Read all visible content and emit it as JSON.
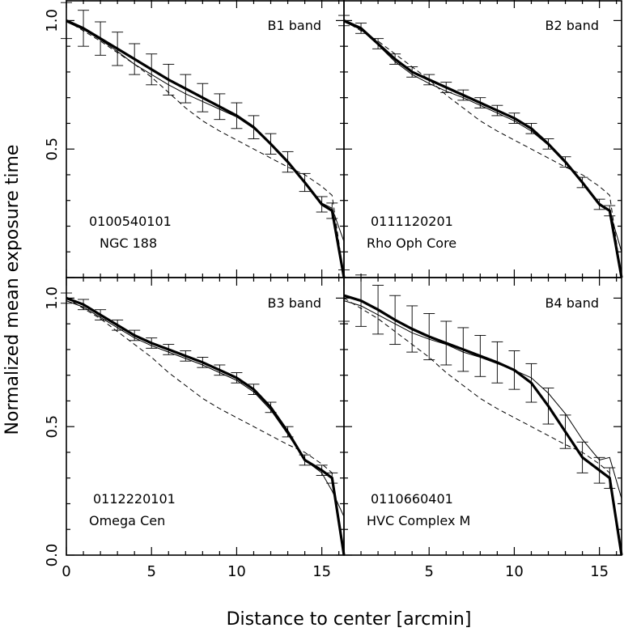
{
  "figure": {
    "ylabel": "Normalized mean exposure time",
    "xlabel": "Distance to center  [arcmin]"
  },
  "chart_data": [
    {
      "type": "line",
      "band": "B1 band",
      "obsid": "0100540101",
      "target": "NGC 188",
      "xlim": [
        0,
        16.3
      ],
      "ylim": [
        0,
        1.08
      ],
      "xticks": [],
      "yticks": [
        "1.0",
        "0.5"
      ],
      "x": [
        0,
        1,
        2,
        3,
        4,
        5,
        6,
        7,
        8,
        9,
        10,
        11,
        12,
        13,
        14,
        15,
        15.6,
        16.3
      ],
      "series": [
        {
          "style": "thick",
          "values": [
            1.0,
            0.97,
            0.93,
            0.89,
            0.85,
            0.81,
            0.77,
            0.735,
            0.7,
            0.665,
            0.63,
            0.585,
            0.52,
            0.45,
            0.37,
            0.285,
            0.26,
            0.0
          ]
        },
        {
          "style": "thin",
          "values": [
            0.995,
            0.965,
            0.925,
            0.88,
            0.83,
            0.79,
            0.75,
            0.715,
            0.685,
            0.655,
            0.625,
            0.58,
            0.52,
            0.45,
            0.375,
            0.29,
            0.27,
            0.14
          ]
        },
        {
          "style": "dashed",
          "values": [
            1.0,
            0.96,
            0.92,
            0.875,
            0.83,
            0.78,
            0.72,
            0.66,
            0.61,
            0.57,
            0.535,
            0.5,
            0.465,
            0.43,
            0.4,
            0.355,
            0.32,
            0.0
          ]
        }
      ],
      "errors": [
        0.07,
        0.07,
        0.065,
        0.065,
        0.06,
        0.06,
        0.06,
        0.055,
        0.055,
        0.05,
        0.05,
        0.045,
        0.04,
        0.04,
        0.035,
        0.03,
        0.03,
        0.0
      ]
    },
    {
      "type": "line",
      "band": "B2 band",
      "obsid": "0111120201",
      "target": "Rho Oph Core",
      "xlim": [
        0,
        16.3
      ],
      "ylim": [
        0,
        1.08
      ],
      "xticks": [],
      "yticks": [],
      "x": [
        0,
        1,
        2,
        3,
        4,
        5,
        6,
        7,
        8,
        9,
        10,
        11,
        12,
        13,
        14,
        15,
        15.6,
        16.3
      ],
      "series": [
        {
          "style": "thick",
          "values": [
            1.0,
            0.97,
            0.91,
            0.85,
            0.8,
            0.77,
            0.74,
            0.71,
            0.68,
            0.65,
            0.62,
            0.58,
            0.52,
            0.45,
            0.37,
            0.285,
            0.26,
            0.0
          ]
        },
        {
          "style": "thin",
          "values": [
            0.995,
            0.965,
            0.905,
            0.84,
            0.79,
            0.755,
            0.725,
            0.7,
            0.67,
            0.64,
            0.61,
            0.57,
            0.515,
            0.445,
            0.37,
            0.29,
            0.26,
            0.1
          ]
        },
        {
          "style": "dashed",
          "values": [
            1.0,
            0.96,
            0.92,
            0.87,
            0.82,
            0.77,
            0.71,
            0.66,
            0.61,
            0.57,
            0.535,
            0.5,
            0.465,
            0.43,
            0.4,
            0.355,
            0.32,
            0.0
          ]
        }
      ],
      "errors": [
        0.02,
        0.02,
        0.02,
        0.02,
        0.02,
        0.02,
        0.02,
        0.02,
        0.02,
        0.02,
        0.02,
        0.02,
        0.02,
        0.02,
        0.02,
        0.02,
        0.02,
        0.0
      ]
    },
    {
      "type": "line",
      "band": "B3 band",
      "obsid": "0112220101",
      "target": "Omega Cen",
      "xlim": [
        0,
        16.3
      ],
      "ylim": [
        0,
        1.08
      ],
      "xticks": [
        "0",
        "5",
        "10",
        "15"
      ],
      "yticks": [
        "1.0",
        "0.5",
        "0.0"
      ],
      "x": [
        0,
        1,
        2,
        3,
        4,
        5,
        6,
        7,
        8,
        9,
        10,
        11,
        12,
        13,
        14,
        15,
        15.6,
        16.3
      ],
      "series": [
        {
          "style": "thick",
          "values": [
            1.0,
            0.975,
            0.935,
            0.895,
            0.855,
            0.825,
            0.8,
            0.775,
            0.75,
            0.72,
            0.69,
            0.645,
            0.575,
            0.48,
            0.37,
            0.33,
            0.3,
            0.0
          ]
        },
        {
          "style": "thin",
          "values": [
            0.99,
            0.965,
            0.925,
            0.885,
            0.845,
            0.815,
            0.79,
            0.765,
            0.74,
            0.71,
            0.68,
            0.635,
            0.565,
            0.47,
            0.37,
            0.32,
            0.25,
            0.15
          ]
        },
        {
          "style": "dashed",
          "values": [
            1.0,
            0.96,
            0.92,
            0.87,
            0.82,
            0.77,
            0.71,
            0.66,
            0.61,
            0.57,
            0.535,
            0.5,
            0.465,
            0.43,
            0.4,
            0.355,
            0.32,
            0.0
          ]
        }
      ],
      "errors": [
        0.02,
        0.02,
        0.02,
        0.02,
        0.02,
        0.02,
        0.02,
        0.02,
        0.02,
        0.02,
        0.02,
        0.02,
        0.02,
        0.02,
        0.02,
        0.02,
        0.02,
        0.0
      ]
    },
    {
      "type": "line",
      "band": "B4 band",
      "obsid": "0110660401",
      "target": "HVC Complex M",
      "xlim": [
        0,
        16.3
      ],
      "ylim": [
        0,
        1.08
      ],
      "xticks": [
        "5",
        "10",
        "15"
      ],
      "yticks": [],
      "x": [
        0,
        1,
        2,
        3,
        4,
        5,
        6,
        7,
        8,
        9,
        10,
        11,
        12,
        13,
        14,
        15,
        15.6,
        16.3
      ],
      "series": [
        {
          "style": "thick",
          "values": [
            1.01,
            0.99,
            0.955,
            0.915,
            0.88,
            0.85,
            0.825,
            0.8,
            0.775,
            0.75,
            0.72,
            0.67,
            0.58,
            0.48,
            0.38,
            0.33,
            0.3,
            0.0
          ]
        },
        {
          "style": "thin",
          "values": [
            0.99,
            0.97,
            0.935,
            0.9,
            0.865,
            0.84,
            0.82,
            0.79,
            0.77,
            0.745,
            0.72,
            0.69,
            0.63,
            0.55,
            0.45,
            0.37,
            0.38,
            0.22
          ]
        },
        {
          "style": "dashed",
          "values": [
            1.0,
            0.96,
            0.92,
            0.87,
            0.82,
            0.77,
            0.71,
            0.66,
            0.61,
            0.57,
            0.535,
            0.5,
            0.465,
            0.43,
            0.4,
            0.355,
            0.32,
            0.0
          ]
        }
      ],
      "errors": [
        0.1,
        0.1,
        0.095,
        0.095,
        0.09,
        0.09,
        0.085,
        0.085,
        0.08,
        0.08,
        0.075,
        0.075,
        0.07,
        0.065,
        0.06,
        0.05,
        0.04,
        0.0
      ]
    }
  ]
}
